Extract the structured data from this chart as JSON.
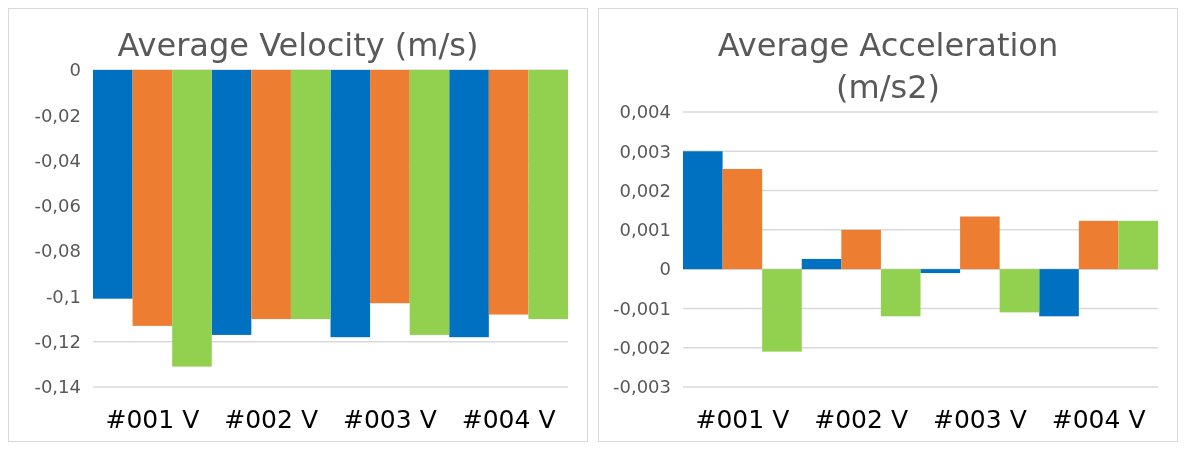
{
  "chart_data": [
    {
      "type": "bar",
      "title": "Average Velocity (m/s)",
      "categories": [
        "#001 V",
        "#002 V",
        "#003 V",
        "#004 V"
      ],
      "series": [
        {
          "color": "#0070c0",
          "values": [
            -0.101,
            -0.117,
            -0.118,
            -0.118
          ]
        },
        {
          "color": "#ed7d31",
          "values": [
            -0.113,
            -0.11,
            -0.103,
            -0.108
          ]
        },
        {
          "color": "#92d050",
          "values": [
            -0.131,
            -0.11,
            -0.117,
            -0.11
          ]
        }
      ],
      "ylim": [
        -0.14,
        0
      ],
      "yticks": [
        {
          "value": -0.14,
          "label": "-0,14"
        },
        {
          "value": -0.12,
          "label": "-0,12"
        },
        {
          "value": -0.1,
          "label": "-0,1"
        },
        {
          "value": -0.08,
          "label": "-0,08"
        },
        {
          "value": -0.06,
          "label": "-0,06"
        },
        {
          "value": -0.04,
          "label": "-0,04"
        },
        {
          "value": -0.02,
          "label": "-0,02"
        },
        0
      ],
      "grid": "y"
    },
    {
      "type": "bar",
      "title": "Average Acceleration (m/s2)",
      "categories": [
        "#001 V",
        "#002 V",
        "#003 V",
        "#004 V"
      ],
      "series": [
        {
          "color": "#0070c0",
          "values": [
            0.003,
            0.00026,
            -0.0001,
            -0.0012
          ]
        },
        {
          "color": "#ed7d31",
          "values": [
            0.00255,
            0.001,
            0.00134,
            0.00123
          ]
        },
        {
          "color": "#92d050",
          "values": [
            -0.0021,
            -0.0012,
            -0.0011,
            0.00123
          ]
        }
      ],
      "ylim": [
        -0.003,
        0.004
      ],
      "yticks": [
        {
          "value": -0.003,
          "label": "-0,003"
        },
        {
          "value": -0.002,
          "label": "-0,002"
        },
        {
          "value": -0.001,
          "label": "-0,001"
        },
        0,
        {
          "value": 0.001,
          "label": "0,001"
        },
        {
          "value": 0.002,
          "label": "0,002"
        },
        {
          "value": 0.003,
          "label": "0,003"
        },
        {
          "value": 0.004,
          "label": "0,004"
        }
      ],
      "grid": "y"
    }
  ]
}
